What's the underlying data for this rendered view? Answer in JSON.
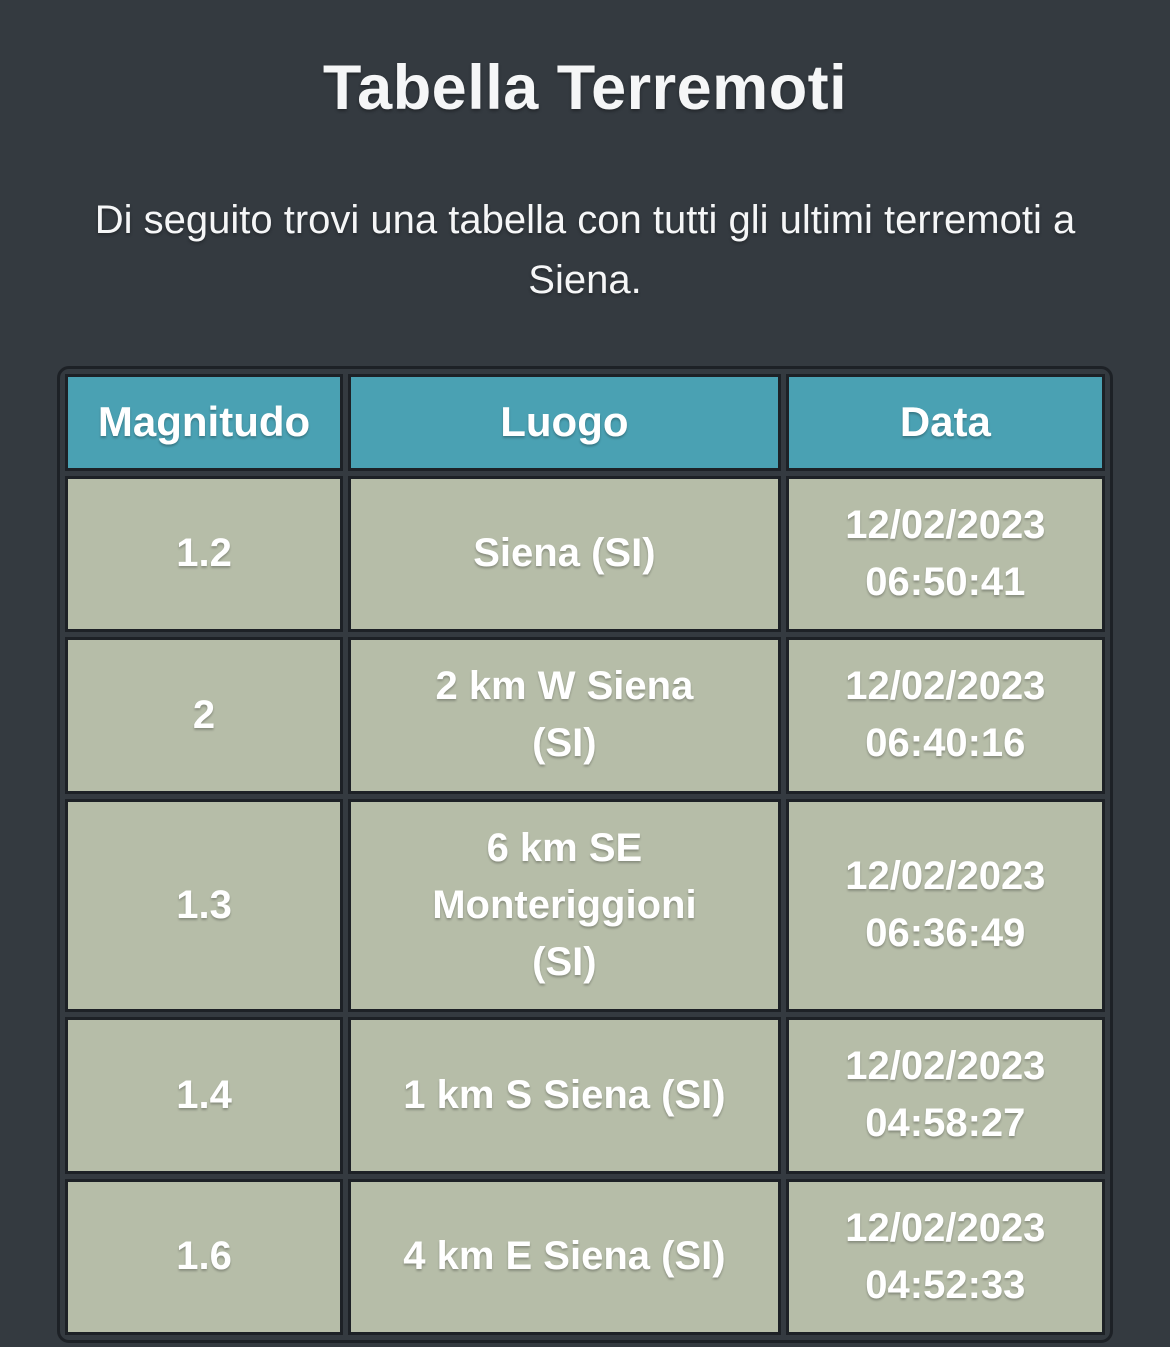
{
  "page": {
    "title": "Tabella Terremoti",
    "subtitle": "Di seguito trovi una tabella con tutti gli ultimi terremoti a Siena."
  },
  "colors": {
    "page_bg": "#343a40",
    "header_bg": "#4aa1b3",
    "cell_bg": "#b6bda8",
    "border": "#1d2126",
    "text": "#ffffff"
  },
  "table": {
    "columns": [
      "Magnitudo",
      "Luogo",
      "Data"
    ],
    "rows": [
      {
        "magnitudo": "1.2",
        "luogo": "Siena (SI)",
        "data": "12/02/2023\n06:50:41"
      },
      {
        "magnitudo": "2",
        "luogo": "2 km W Siena\n(SI)",
        "data": "12/02/2023\n06:40:16"
      },
      {
        "magnitudo": "1.3",
        "luogo": "6 km SE\nMonteriggioni\n(SI)",
        "data": "12/02/2023\n06:36:49"
      },
      {
        "magnitudo": "1.4",
        "luogo": "1 km S Siena (SI)",
        "data": "12/02/2023\n04:58:27"
      },
      {
        "magnitudo": "1.6",
        "luogo": "4 km E Siena (SI)",
        "data": "12/02/2023\n04:52:33"
      }
    ]
  }
}
